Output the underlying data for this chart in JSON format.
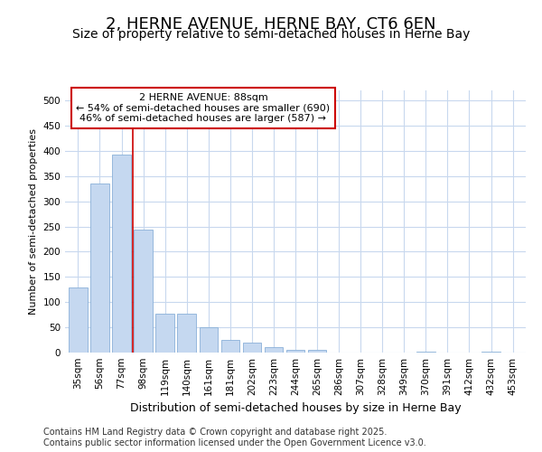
{
  "title": "2, HERNE AVENUE, HERNE BAY, CT6 6EN",
  "subtitle": "Size of property relative to semi-detached houses in Herne Bay",
  "xlabel": "Distribution of semi-detached houses by size in Herne Bay",
  "ylabel": "Number of semi-detached properties",
  "categories": [
    "35sqm",
    "56sqm",
    "77sqm",
    "98sqm",
    "119sqm",
    "140sqm",
    "161sqm",
    "181sqm",
    "202sqm",
    "223sqm",
    "244sqm",
    "265sqm",
    "286sqm",
    "307sqm",
    "328sqm",
    "349sqm",
    "370sqm",
    "391sqm",
    "412sqm",
    "432sqm",
    "453sqm"
  ],
  "values": [
    130,
    335,
    393,
    243,
    78,
    78,
    51,
    26,
    20,
    10,
    5,
    5,
    0,
    0,
    0,
    0,
    2,
    0,
    0,
    2,
    0
  ],
  "bar_color": "#c5d8f0",
  "bar_edge_color": "#8ab0d8",
  "vline_x": 2.5,
  "vline_color": "#cc0000",
  "annotation_text": "2 HERNE AVENUE: 88sqm\n← 54% of semi-detached houses are smaller (690)\n46% of semi-detached houses are larger (587) →",
  "annotation_box_color": "#ffffff",
  "annotation_box_edge": "#cc0000",
  "ylim": [
    0,
    520
  ],
  "yticks": [
    0,
    50,
    100,
    150,
    200,
    250,
    300,
    350,
    400,
    450,
    500
  ],
  "footer": "Contains HM Land Registry data © Crown copyright and database right 2025.\nContains public sector information licensed under the Open Government Licence v3.0.",
  "background_color": "#ffffff",
  "plot_background": "#ffffff",
  "grid_color": "#c8d8ee",
  "title_fontsize": 13,
  "subtitle_fontsize": 10,
  "xlabel_fontsize": 9,
  "ylabel_fontsize": 8,
  "tick_fontsize": 7.5,
  "footer_fontsize": 7,
  "ann_fontsize": 8
}
